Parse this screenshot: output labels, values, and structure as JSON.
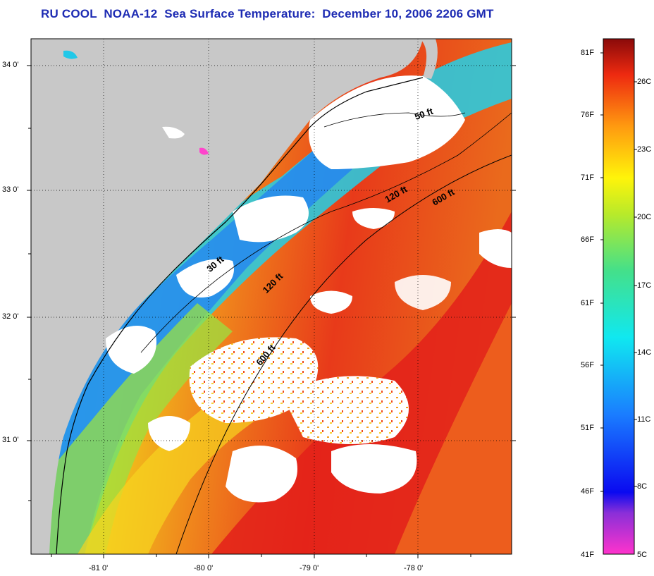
{
  "title": "RU COOL  NOAA-12  Sea Surface Temperature:  December 10, 2006 2206 GMT",
  "lat_ticks": [
    "34 0'",
    "33 0'",
    "32 0'",
    "31 0'"
  ],
  "lon_ticks": [
    "-81 0'",
    "-80 0'",
    "-79 0'",
    "-78 0'"
  ],
  "isobaths": [
    "50 ft",
    "120 ft",
    "600 ft",
    "30 ft",
    "120 ft",
    "600 ft"
  ],
  "colorbar": {
    "fahrenheit": [
      "81F",
      "76F",
      "71F",
      "66F",
      "61F",
      "56F",
      "51F",
      "46F",
      "41F"
    ],
    "celsius": [
      "26C",
      "23C",
      "20C",
      "17C",
      "14C",
      "11C",
      "8C",
      "5C"
    ]
  },
  "colors": {
    "land": "#c8c8c8",
    "cloud": "#ffffff",
    "title": "#1d2bb3",
    "warm_water": "#e8321a"
  }
}
